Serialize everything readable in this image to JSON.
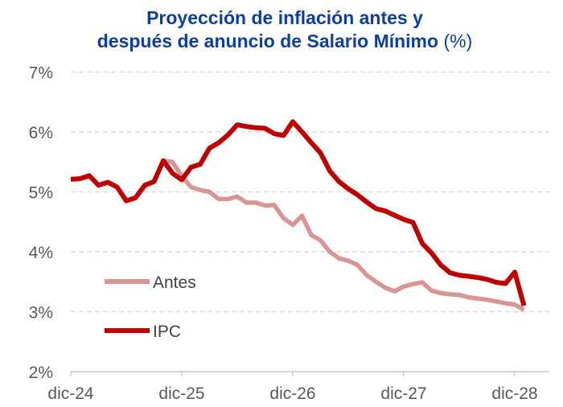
{
  "chart_data": {
    "type": "line",
    "title_line1": "Proyección de inflación antes y",
    "title_line2": "después de anuncio de Salario Mínimo",
    "title_unit": "(%)",
    "xlabel": "",
    "ylabel": "",
    "ylim": [
      2,
      7
    ],
    "yticks": [
      2,
      3,
      4,
      5,
      6,
      7
    ],
    "ytick_labels": [
      "2%",
      "3%",
      "4%",
      "5%",
      "6%",
      "7%"
    ],
    "xticks": [
      "2024-12",
      "2025-12",
      "2026-12",
      "2027-12",
      "2028-12"
    ],
    "xtick_labels": [
      "dic-24",
      "dic-25",
      "dic-26",
      "dic-27",
      "dic-28"
    ],
    "x_start": "2024-12",
    "grid": "horizontal dashed",
    "legend_placement": "bottom-left",
    "series": [
      {
        "name": "Antes",
        "color": "#d99594",
        "start": "2025-10",
        "values": [
          5.52,
          5.5,
          5.26,
          5.08,
          5.03,
          5.0,
          4.88,
          4.88,
          4.92,
          4.82,
          4.82,
          4.77,
          4.78,
          4.56,
          4.45,
          4.6,
          4.28,
          4.19,
          4.0,
          3.89,
          3.85,
          3.78,
          3.61,
          3.5,
          3.4,
          3.34,
          3.42,
          3.46,
          3.49,
          3.35,
          3.31,
          3.29,
          3.28,
          3.24,
          3.22,
          3.2,
          3.17,
          3.14,
          3.12,
          3.03
        ]
      },
      {
        "name": "IPC",
        "color": "#c00000",
        "start": "2024-12",
        "values": [
          5.21,
          5.22,
          5.27,
          5.11,
          5.16,
          5.08,
          4.85,
          4.9,
          5.11,
          5.17,
          5.52,
          5.31,
          5.2,
          5.41,
          5.46,
          5.73,
          5.82,
          5.95,
          6.12,
          6.09,
          6.07,
          6.06,
          5.97,
          5.94,
          6.17,
          6.0,
          5.82,
          5.65,
          5.35,
          5.17,
          5.05,
          4.95,
          4.83,
          4.72,
          4.68,
          4.61,
          4.54,
          4.49,
          4.14,
          3.98,
          3.78,
          3.65,
          3.61,
          3.59,
          3.57,
          3.54,
          3.49,
          3.47,
          3.66,
          3.1
        ]
      }
    ]
  }
}
